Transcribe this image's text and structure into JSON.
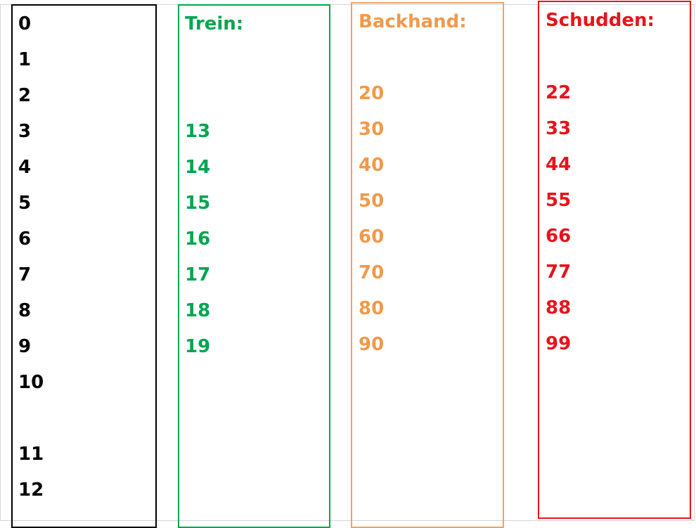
{
  "columns": {
    "numbers": {
      "color": "#000000",
      "items": [
        "0",
        "1",
        "2",
        "3",
        "4",
        "5",
        "6",
        "7",
        "8",
        "9",
        "10",
        "11",
        "12"
      ]
    },
    "trein": {
      "color": "#00a550",
      "heading": "Trein:",
      "items": [
        "13",
        "14",
        "15",
        "16",
        "17",
        "18",
        "19"
      ]
    },
    "backhand": {
      "color": "#f4a15a",
      "heading": "Backhand:",
      "items": [
        "20",
        "30",
        "40",
        "50",
        "60",
        "70",
        "80",
        "90"
      ]
    },
    "schudden": {
      "color": "#e8131b",
      "heading": "Schudden:",
      "items": [
        "22",
        "33",
        "44",
        "55",
        "66",
        "77",
        "88",
        "99"
      ]
    }
  }
}
